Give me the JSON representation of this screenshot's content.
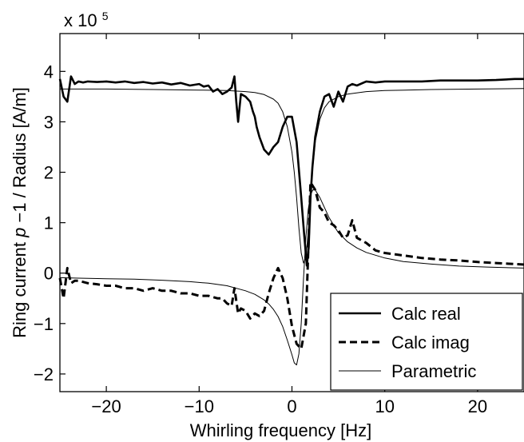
{
  "chart_data": {
    "type": "line",
    "xlabel": "Whirling frequency [Hz]",
    "ylabel_prefix": "Ring current ",
    "ylabel_italic": "p",
    "ylabel_suffix": "−1 / Radius [A/m]",
    "multiplier_base": "x 10",
    "multiplier_exp": "5",
    "xlim": [
      -25,
      25
    ],
    "ylim": [
      -2.35,
      4.75
    ],
    "xticks": [
      -20,
      -10,
      0,
      10,
      20
    ],
    "xtick_labels": [
      "−20",
      "−10",
      "0",
      "10",
      "20"
    ],
    "yticks": [
      -2,
      -1,
      0,
      1,
      2,
      3,
      4
    ],
    "ytick_labels": [
      "−2",
      "−1",
      "0",
      "1",
      "2",
      "3",
      "4"
    ],
    "grid": false,
    "legend_position": "bottom-right",
    "series": [
      {
        "name": "Calc real",
        "style": "solid-thick",
        "x": [
          -25,
          -24.6,
          -24.2,
          -23.8,
          -23.4,
          -23,
          -22.5,
          -22,
          -21,
          -20,
          -19,
          -18,
          -17,
          -16,
          -15,
          -14,
          -13,
          -12,
          -11,
          -10,
          -9.5,
          -9,
          -8.5,
          -8,
          -7.5,
          -7,
          -6.5,
          -6.2,
          -6,
          -5.8,
          -5.5,
          -5,
          -4.5,
          -4.2,
          -4,
          -3.8,
          -3.5,
          -3,
          -2.5,
          -2,
          -1.5,
          -1,
          -0.5,
          0,
          0.5,
          1,
          1.3,
          1.6,
          1.8,
          2,
          2.2,
          2.5,
          3,
          3.5,
          4,
          4.5,
          5,
          5.5,
          6,
          6.5,
          7,
          8,
          9,
          10,
          12,
          14,
          16,
          18,
          20,
          22,
          24,
          25
        ],
        "y": [
          3.85,
          3.5,
          3.4,
          3.9,
          3.75,
          3.8,
          3.78,
          3.8,
          3.79,
          3.8,
          3.78,
          3.8,
          3.77,
          3.79,
          3.76,
          3.78,
          3.74,
          3.77,
          3.72,
          3.75,
          3.7,
          3.72,
          3.6,
          3.65,
          3.55,
          3.6,
          3.68,
          3.9,
          3.4,
          3.0,
          3.55,
          3.5,
          3.4,
          3.2,
          3.1,
          2.9,
          2.7,
          2.45,
          2.35,
          2.5,
          2.6,
          2.9,
          3.1,
          3.1,
          2.6,
          1.5,
          0.8,
          0.15,
          0.5,
          1.5,
          2.1,
          2.7,
          3.2,
          3.5,
          3.55,
          3.3,
          3.6,
          3.4,
          3.7,
          3.75,
          3.72,
          3.8,
          3.78,
          3.8,
          3.8,
          3.8,
          3.82,
          3.82,
          3.82,
          3.83,
          3.85,
          3.85
        ]
      },
      {
        "name": "Calc imag",
        "style": "dashed-thick",
        "x": [
          -25,
          -24.6,
          -24.2,
          -23.8,
          -23.4,
          -23,
          -22,
          -21,
          -20,
          -19,
          -18,
          -17,
          -16,
          -15,
          -14,
          -13,
          -12,
          -11,
          -10,
          -9,
          -8,
          -7.5,
          -7,
          -6.5,
          -6.2,
          -6,
          -5.8,
          -5.5,
          -5,
          -4.5,
          -4,
          -3.5,
          -3,
          -2.5,
          -2,
          -1.5,
          -1,
          -0.5,
          0,
          0.5,
          1,
          1.5,
          2,
          2.5,
          3,
          3.5,
          4,
          4.5,
          5,
          5.5,
          6,
          6.5,
          7,
          8,
          9,
          10,
          12,
          14,
          16,
          18,
          20,
          22,
          24,
          25
        ],
        "y": [
          -0.1,
          -0.5,
          0.1,
          -0.2,
          -0.15,
          -0.15,
          -0.2,
          -0.22,
          -0.25,
          -0.25,
          -0.3,
          -0.3,
          -0.35,
          -0.3,
          -0.35,
          -0.35,
          -0.4,
          -0.4,
          -0.45,
          -0.45,
          -0.5,
          -0.5,
          -0.6,
          -0.65,
          -0.3,
          -0.55,
          -0.8,
          -0.7,
          -0.75,
          -0.9,
          -0.8,
          -0.85,
          -0.75,
          -0.4,
          -0.1,
          0.1,
          -0.1,
          -0.5,
          -1.05,
          -1.4,
          -1.5,
          -1.0,
          1.8,
          1.65,
          1.3,
          1.2,
          1.0,
          0.95,
          0.85,
          0.7,
          0.75,
          1.05,
          0.7,
          0.6,
          0.45,
          0.4,
          0.35,
          0.3,
          0.27,
          0.25,
          0.22,
          0.2,
          0.18,
          0.17
        ]
      },
      {
        "name": "Parametric",
        "style": "solid-thin",
        "x": [
          -25,
          -23,
          -20,
          -17,
          -14,
          -11,
          -9,
          -7,
          -5,
          -4,
          -3,
          -2.5,
          -2,
          -1.5,
          -1,
          -0.5,
          0,
          0.25,
          0.5,
          0.75,
          1,
          1.25,
          1.5,
          1.75,
          2,
          2.25,
          2.5,
          3,
          3.5,
          4,
          4.5,
          5,
          6,
          7,
          8,
          10,
          12,
          15,
          18,
          21,
          25
        ],
        "y": [
          -0.09,
          -0.1,
          -0.11,
          -0.12,
          -0.14,
          -0.17,
          -0.2,
          -0.25,
          -0.35,
          -0.42,
          -0.53,
          -0.61,
          -0.72,
          -0.86,
          -1.06,
          -1.33,
          -1.62,
          -1.78,
          -1.82,
          -1.6,
          -1.0,
          -0.1,
          0.7,
          1.25,
          1.55,
          1.65,
          1.65,
          1.5,
          1.3,
          1.1,
          0.95,
          0.8,
          0.62,
          0.5,
          0.41,
          0.3,
          0.23,
          0.18,
          0.14,
          0.12,
          0.1
        ]
      },
      {
        "name": "Parametric",
        "style": "solid-thin",
        "x": [
          -25,
          -20,
          -15,
          -10,
          -7,
          -5,
          -4,
          -3,
          -2,
          -1.5,
          -1,
          -0.5,
          0,
          0.25,
          0.5,
          0.75,
          1,
          1.25,
          1.5,
          1.75,
          2,
          2.25,
          2.5,
          3,
          3.5,
          4,
          5,
          6,
          8,
          10,
          15,
          20,
          25
        ],
        "y": [
          3.65,
          3.65,
          3.64,
          3.63,
          3.62,
          3.6,
          3.58,
          3.54,
          3.45,
          3.37,
          3.2,
          2.9,
          2.4,
          2.0,
          1.5,
          0.9,
          0.4,
          0.2,
          0.3,
          0.8,
          1.5,
          2.1,
          2.6,
          3.05,
          3.28,
          3.4,
          3.5,
          3.55,
          3.6,
          3.62,
          3.64,
          3.65,
          3.66
        ]
      }
    ],
    "legend": [
      {
        "label": "Calc real",
        "style": "solid-thick"
      },
      {
        "label": "Calc imag",
        "style": "dashed-thick"
      },
      {
        "label": "Parametric",
        "style": "solid-thin"
      }
    ]
  }
}
